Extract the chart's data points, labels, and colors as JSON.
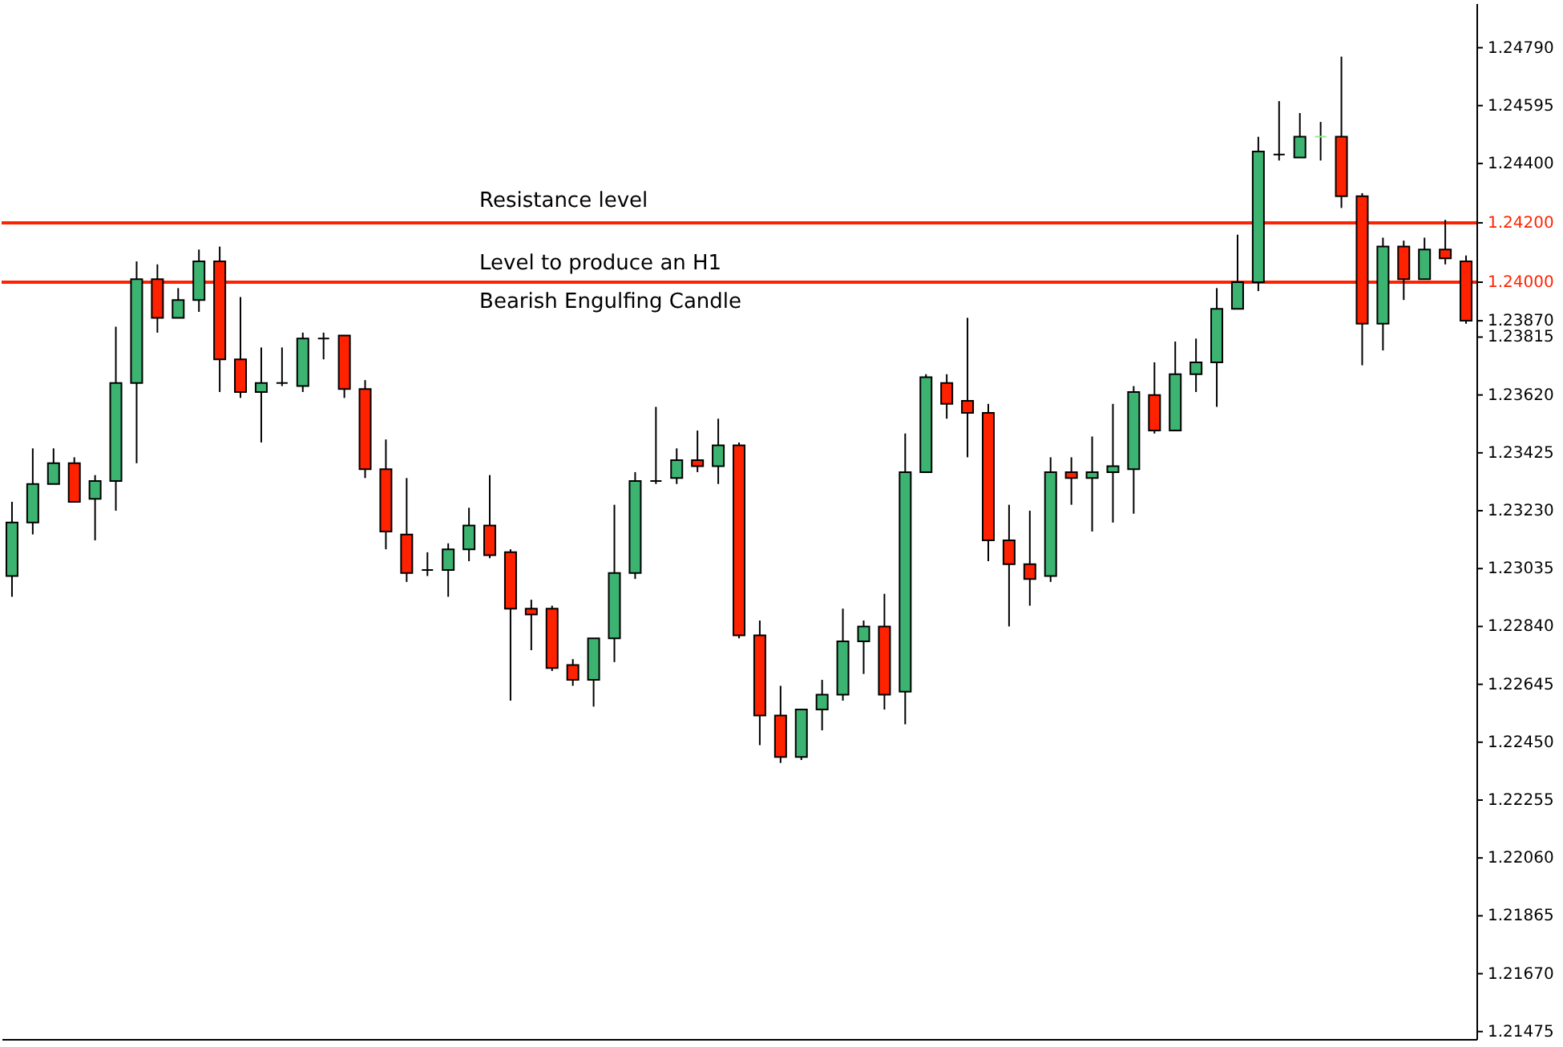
{
  "chart_data": {
    "type": "candlestick",
    "categories": [
      null,
      null,
      null,
      null,
      null,
      null,
      null,
      null,
      null,
      null,
      null,
      null,
      null,
      null,
      null,
      null,
      null,
      null,
      null,
      null,
      null,
      null,
      null,
      null,
      null,
      null,
      null,
      null,
      null,
      null,
      null,
      null,
      null,
      null,
      null,
      null,
      null,
      null,
      null,
      null,
      null,
      null,
      null,
      null,
      null,
      null,
      null,
      null,
      null,
      null,
      null,
      null,
      null,
      null,
      null,
      null,
      null,
      null,
      null,
      null,
      null,
      null,
      null,
      null,
      null,
      null,
      null,
      null,
      null,
      null,
      null
    ],
    "ohlc": [
      [
        1.2301,
        1.2326,
        1.2294,
        1.2319
      ],
      [
        1.2319,
        1.2344,
        1.2315,
        1.2332
      ],
      [
        1.2332,
        1.2344,
        1.2332,
        1.2339
      ],
      [
        1.2339,
        1.2341,
        1.2326,
        1.2326
      ],
      [
        1.2327,
        1.2335,
        1.2313,
        1.2333
      ],
      [
        1.2333,
        1.2385,
        1.2323,
        1.2366
      ],
      [
        1.2366,
        1.2407,
        1.2339,
        1.2401
      ],
      [
        1.2401,
        1.2406,
        1.2383,
        1.2388
      ],
      [
        1.2388,
        1.2398,
        1.2388,
        1.2394
      ],
      [
        1.2394,
        1.2411,
        1.239,
        1.2407
      ],
      [
        1.2407,
        1.2412,
        1.2363,
        1.2374
      ],
      [
        1.2374,
        1.2395,
        1.2361,
        1.2363
      ],
      [
        1.2363,
        1.2378,
        1.2346,
        1.2366
      ],
      [
        1.2366,
        1.2378,
        1.2365,
        1.2366
      ],
      [
        1.2365,
        1.2383,
        1.2363,
        1.2381
      ],
      [
        1.2381,
        1.2383,
        1.2374,
        1.2381
      ],
      [
        1.2382,
        1.2382,
        1.2361,
        1.2364
      ],
      [
        1.2364,
        1.2367,
        1.2334,
        1.2337
      ],
      [
        1.2337,
        1.2347,
        1.231,
        1.2316
      ],
      [
        1.2315,
        1.2334,
        1.2299,
        1.2302
      ],
      [
        1.2303,
        1.2309,
        1.2301,
        1.2303
      ],
      [
        1.2303,
        1.2312,
        1.2294,
        1.231
      ],
      [
        1.231,
        1.2324,
        1.2306,
        1.2318
      ],
      [
        1.2318,
        1.2335,
        1.2307,
        1.2308
      ],
      [
        1.2309,
        1.231,
        1.2259,
        1.229
      ],
      [
        1.229,
        1.2293,
        1.2276,
        1.2288
      ],
      [
        1.229,
        1.2291,
        1.2269,
        1.227
      ],
      [
        1.2271,
        1.2273,
        1.2264,
        1.2266
      ],
      [
        1.2266,
        1.228,
        1.2257,
        1.228
      ],
      [
        1.228,
        1.2325,
        1.2272,
        1.2302
      ],
      [
        1.2302,
        1.2336,
        1.23,
        1.2333
      ],
      [
        1.2333,
        1.2358,
        1.2332,
        1.2333
      ],
      [
        1.2334,
        1.2344,
        1.2332,
        1.234
      ],
      [
        1.234,
        1.235,
        1.2336,
        1.2338
      ],
      [
        1.2338,
        1.2354,
        1.2332,
        1.2345
      ],
      [
        1.2345,
        1.2346,
        1.228,
        1.2281
      ],
      [
        1.2281,
        1.2286,
        1.2244,
        1.2254
      ],
      [
        1.2254,
        1.2264,
        1.2238,
        1.224
      ],
      [
        1.224,
        1.2256,
        1.2239,
        1.2256
      ],
      [
        1.2256,
        1.2266,
        1.2249,
        1.2261
      ],
      [
        1.2261,
        1.229,
        1.2259,
        1.2279
      ],
      [
        1.2279,
        1.2286,
        1.2268,
        1.2284
      ],
      [
        1.2284,
        1.2295,
        1.2256,
        1.2261
      ],
      [
        1.2262,
        1.2349,
        1.2251,
        1.2336
      ],
      [
        1.2336,
        1.2369,
        1.2336,
        1.2368
      ],
      [
        1.2366,
        1.2369,
        1.2354,
        1.2359
      ],
      [
        1.236,
        1.2388,
        1.2341,
        1.2356
      ],
      [
        1.2356,
        1.2359,
        1.2306,
        1.2313
      ],
      [
        1.2313,
        1.2325,
        1.2284,
        1.2305
      ],
      [
        1.2305,
        1.2323,
        1.2291,
        1.23
      ],
      [
        1.2301,
        1.2341,
        1.2299,
        1.2336
      ],
      [
        1.2336,
        1.2341,
        1.2325,
        1.2334
      ],
      [
        1.2334,
        1.2348,
        1.2316,
        1.2336
      ],
      [
        1.2336,
        1.2359,
        1.2319,
        1.2338
      ],
      [
        1.2337,
        1.2365,
        1.2322,
        1.2363
      ],
      [
        1.2362,
        1.2373,
        1.2349,
        1.235
      ],
      [
        1.235,
        1.238,
        1.235,
        1.2369
      ],
      [
        1.2369,
        1.2381,
        1.2363,
        1.2373
      ],
      [
        1.2373,
        1.2398,
        1.2358,
        1.2391
      ],
      [
        1.2391,
        1.2416,
        1.2391,
        1.24
      ],
      [
        1.24,
        1.2449,
        1.2397,
        1.2444
      ],
      [
        1.2443,
        1.2461,
        1.2441,
        1.2443
      ],
      [
        1.2442,
        1.2457,
        1.2442,
        1.2449
      ],
      [
        1.2449,
        1.2454,
        1.2441,
        1.2449
      ],
      [
        1.2449,
        1.2476,
        1.2425,
        1.2429
      ],
      [
        1.2429,
        1.243,
        1.2372,
        1.2386
      ],
      [
        1.2386,
        1.2415,
        1.2377,
        1.2412
      ],
      [
        1.2412,
        1.2414,
        1.2394,
        1.2401
      ],
      [
        1.2401,
        1.2415,
        1.2401,
        1.2411
      ],
      [
        1.2411,
        1.2421,
        1.2406,
        1.2408
      ],
      [
        1.2407,
        1.2409,
        1.2386,
        1.2387
      ]
    ],
    "colors": [
      "#3cb371",
      "#3cb371",
      "#3cb371",
      "#ff2200",
      "#3cb371",
      "#3cb371",
      "#3cb371",
      "#ff2200",
      "#3cb371",
      "#3cb371",
      "#ff2200",
      "#ff2200",
      "#3cb371",
      "#000000",
      "#3cb371",
      "#000000",
      "#ff2200",
      "#ff2200",
      "#ff2200",
      "#ff2200",
      "#000000",
      "#3cb371",
      "#3cb371",
      "#ff2200",
      "#ff2200",
      "#ff2200",
      "#ff2200",
      "#ff2200",
      "#3cb371",
      "#3cb371",
      "#3cb371",
      "#000000",
      "#3cb371",
      "#ff2200",
      "#3cb371",
      "#ff2200",
      "#ff2200",
      "#ff2200",
      "#3cb371",
      "#3cb371",
      "#3cb371",
      "#3cb371",
      "#ff2200",
      "#3cb371",
      "#3cb371",
      "#ff2200",
      "#ff2200",
      "#ff2200",
      "#ff2200",
      "#ff2200",
      "#3cb371",
      "#ff2200",
      "#3cb371",
      "#3cb371",
      "#3cb371",
      "#ff2200",
      "#3cb371",
      "#3cb371",
      "#3cb371",
      "#3cb371",
      "#3cb371",
      "#000000",
      "#3cb371",
      "#90ee90",
      "#ff2200",
      "#ff2200",
      "#3cb371",
      "#ff2200",
      "#3cb371",
      "#ff2200",
      "#ff2200"
    ],
    "ylim": [
      1.2145,
      1.2494
    ],
    "yticks": [
      1.21475,
      {
        "value": 1.2167,
        "label": "1.21670"
      },
      1.21865,
      {
        "value": 1.2206,
        "label": "1.22060"
      },
      1.22255,
      {
        "value": 1.2245,
        "label": "1.22450"
      },
      1.22645,
      {
        "value": 1.2284,
        "label": "1.22840"
      },
      1.23035,
      {
        "value": 1.2323,
        "label": "1.23230"
      },
      1.23425,
      {
        "value": 1.2362,
        "label": "1.23620"
      },
      1.23815,
      {
        "value": 1.2387,
        "label": "1.23870"
      },
      {
        "value": 1.24,
        "label": "1.24000"
      },
      {
        "value": 1.242,
        "label": "1.24200"
      },
      {
        "value": 1.244,
        "label": "1.24400"
      },
      1.24595,
      {
        "value": 1.2479,
        "label": "1.24790"
      }
    ],
    "ref_lines": [
      {
        "axis": "y",
        "value": 1.242,
        "label": "Resistance level",
        "color": "#ff2200"
      },
      {
        "axis": "y",
        "value": 1.24,
        "label": "Level to produce an H1\nBearish Engulfing Candle",
        "color": "#ff2200"
      }
    ],
    "tick_labels": "y",
    "grid": false
  }
}
